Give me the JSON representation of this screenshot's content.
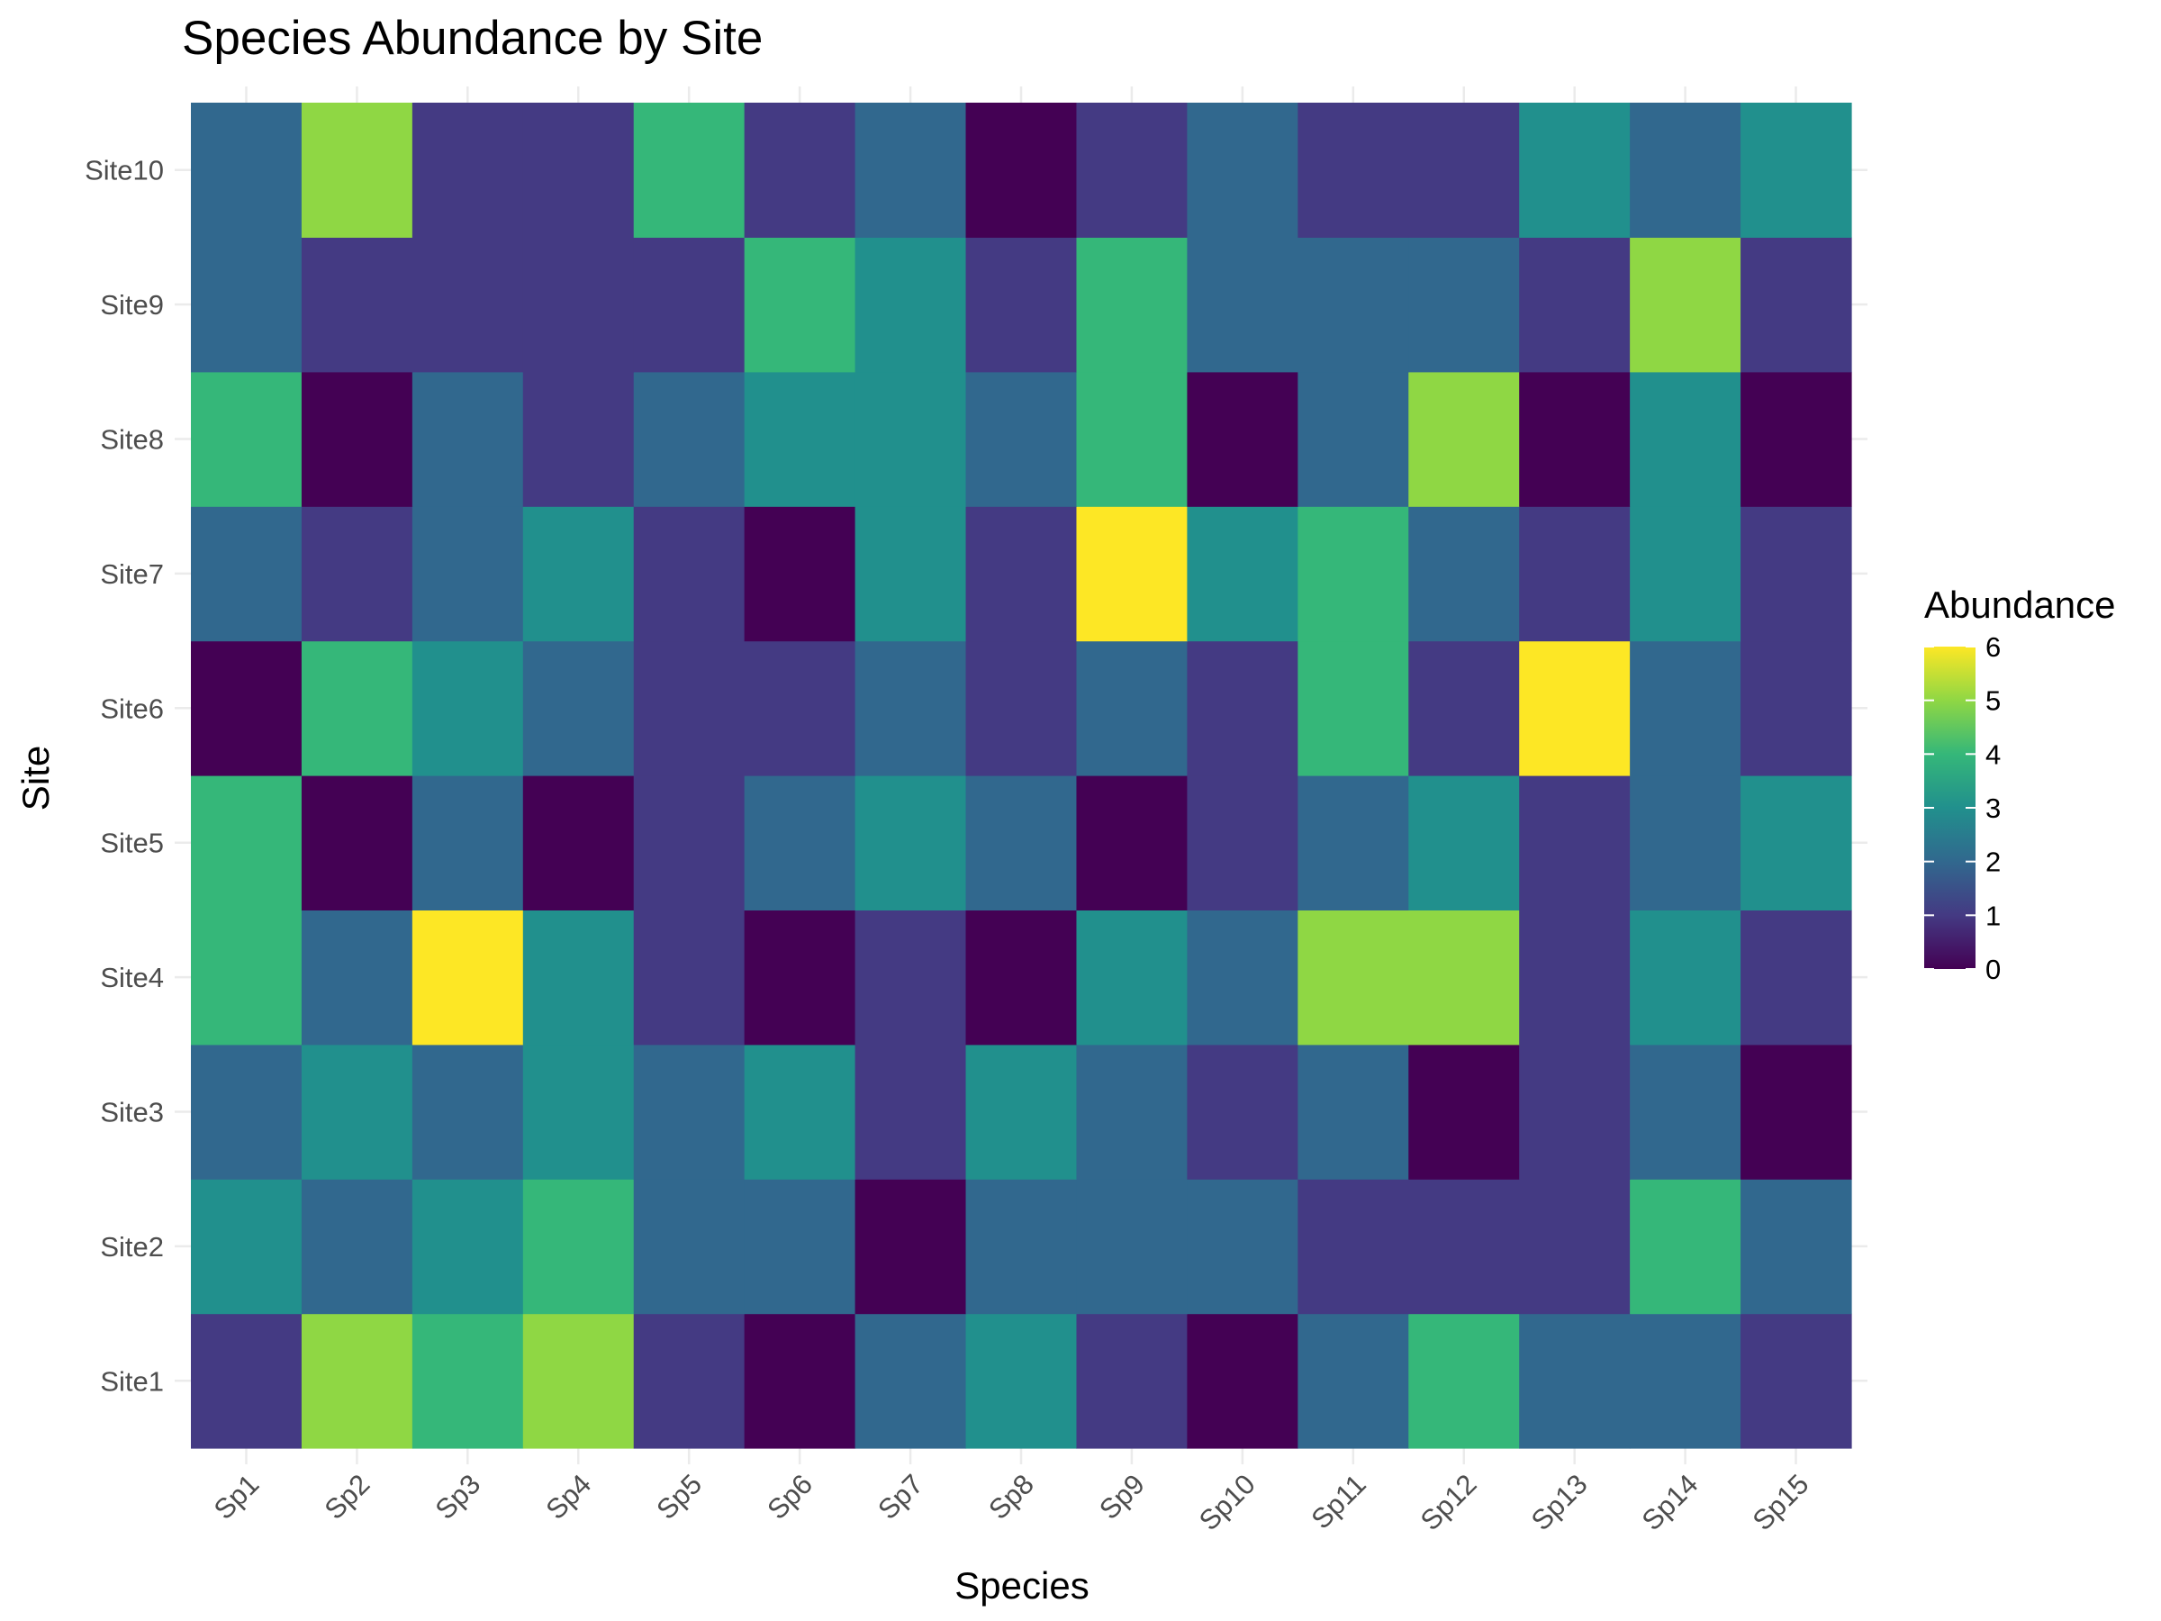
{
  "chart_data": {
    "type": "heatmap",
    "title": "Species Abundance by Site",
    "xlabel": "Species",
    "ylabel": "Site",
    "x_categories": [
      "Sp1",
      "Sp2",
      "Sp3",
      "Sp4",
      "Sp5",
      "Sp6",
      "Sp7",
      "Sp8",
      "Sp9",
      "Sp10",
      "Sp11",
      "Sp12",
      "Sp13",
      "Sp14",
      "Sp15"
    ],
    "y_categories": [
      "Site1",
      "Site2",
      "Site3",
      "Site4",
      "Site5",
      "Site6",
      "Site7",
      "Site8",
      "Site9",
      "Site10"
    ],
    "values": [
      [
        1,
        5,
        4,
        5,
        1,
        0,
        2,
        3,
        1,
        0,
        2,
        4,
        2,
        2,
        1
      ],
      [
        3,
        2,
        3,
        4,
        2,
        2,
        0,
        2,
        2,
        2,
        1,
        1,
        1,
        4,
        2
      ],
      [
        2,
        3,
        2,
        3,
        2,
        3,
        1,
        3,
        2,
        1,
        2,
        0,
        1,
        2,
        0
      ],
      [
        4,
        2,
        6,
        3,
        1,
        0,
        1,
        0,
        3,
        2,
        5,
        5,
        1,
        3,
        1
      ],
      [
        4,
        0,
        2,
        0,
        1,
        2,
        3,
        2,
        0,
        1,
        2,
        3,
        1,
        2,
        3
      ],
      [
        0,
        4,
        3,
        2,
        1,
        1,
        2,
        1,
        2,
        1,
        4,
        1,
        6,
        2,
        1
      ],
      [
        2,
        1,
        2,
        3,
        1,
        0,
        3,
        1,
        6,
        3,
        4,
        2,
        1,
        3,
        1
      ],
      [
        4,
        0,
        2,
        1,
        2,
        3,
        3,
        2,
        4,
        0,
        2,
        5,
        0,
        3,
        0
      ],
      [
        2,
        1,
        1,
        1,
        1,
        4,
        3,
        1,
        4,
        2,
        2,
        2,
        1,
        5,
        1
      ],
      [
        2,
        5,
        1,
        1,
        4,
        1,
        2,
        0,
        1,
        2,
        1,
        1,
        3,
        2,
        3
      ]
    ],
    "legend": {
      "title": "Abundance",
      "ticks": [
        "0",
        "1",
        "2",
        "3",
        "4",
        "5",
        "6"
      ],
      "range": [
        0,
        6
      ],
      "colormap": "viridis",
      "position": "right"
    },
    "grid": true
  }
}
